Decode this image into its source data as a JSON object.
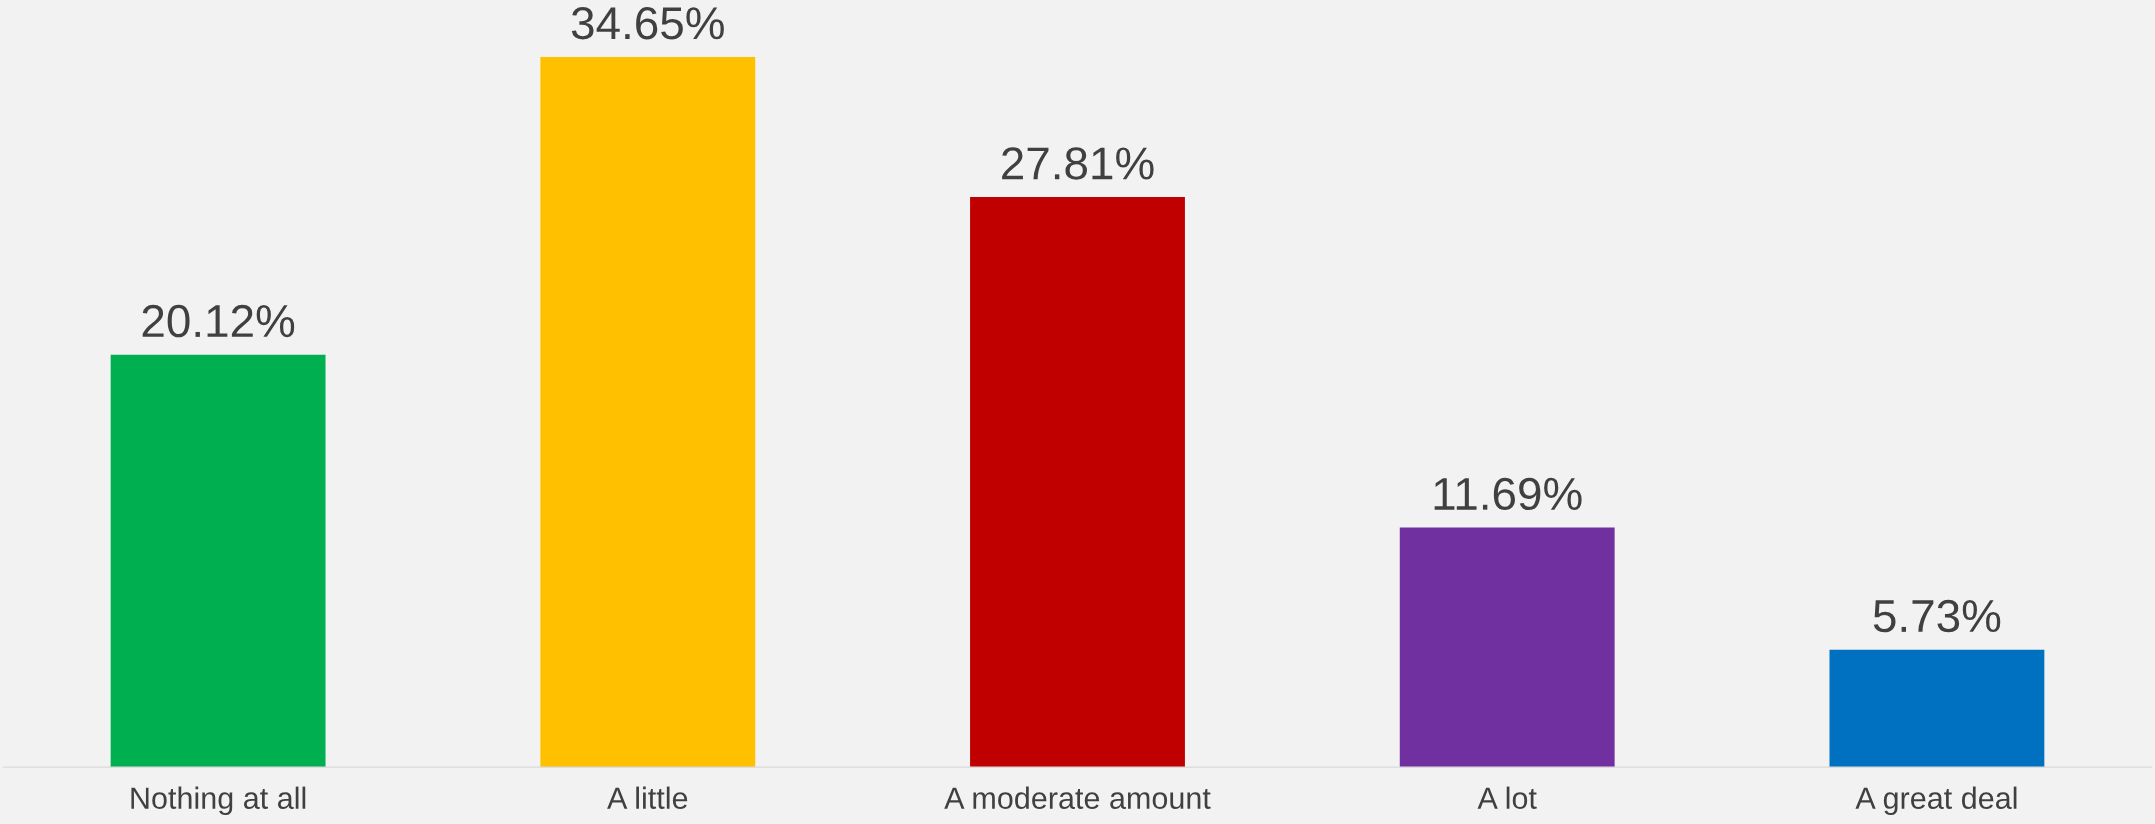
{
  "chart_data": {
    "type": "bar",
    "categories": [
      "Nothing at all",
      "A little",
      "A moderate amount",
      "A lot",
      "A great deal"
    ],
    "values": [
      20.12,
      34.65,
      27.81,
      11.69,
      5.73
    ],
    "colors": [
      "#00b050",
      "#ffc000",
      "#c00000",
      "#7030a0",
      "#0070c0"
    ],
    "value_labels": [
      "20.12%",
      "34.65%",
      "27.81%",
      "11.69%",
      "5.73%"
    ],
    "grid": false,
    "legend": false
  }
}
